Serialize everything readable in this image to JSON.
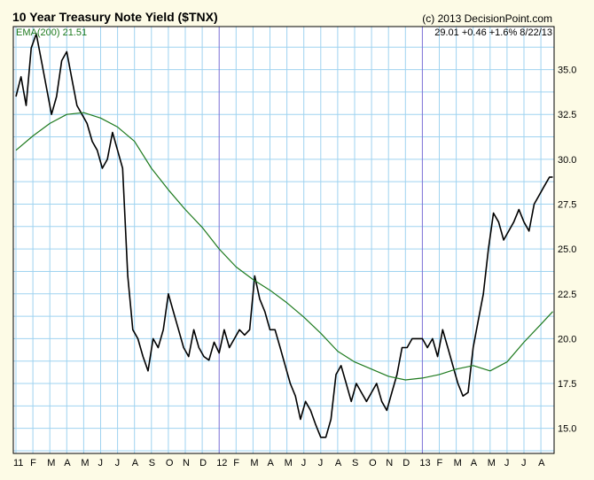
{
  "header": {
    "title": "10 Year Treasury Note Yield ($TNX)",
    "copyright": "(c) 2013 DecisionPoint.com",
    "ema_label": "EMA(200) 21.51",
    "last_quote": "29.01 +0.46 +1.6% 8/22/13"
  },
  "colors": {
    "background": "#fdfbe6",
    "plot_background": "#ffffff",
    "grid": "#9fd3f0",
    "year_line": "#7b6fd6",
    "price_line": "#000000",
    "ema_line": "#1e7a1e",
    "ema_label": "#1e7a1e"
  },
  "chart_data": {
    "type": "line",
    "title": "10 Year Treasury Note Yield ($TNX)",
    "x_unit": "month index from Jan 2011",
    "x_range": [
      0,
      31.8
    ],
    "ylim": [
      13.6,
      37.4
    ],
    "y_ticks": [
      "15.0",
      "17.5",
      "20.0",
      "22.5",
      "25.0",
      "27.5",
      "30.0",
      "32.5",
      "35.0"
    ],
    "x_ticks": [
      "11",
      "F",
      "M",
      "A",
      "M",
      "J",
      "J",
      "A",
      "S",
      "O",
      "N",
      "D",
      "12",
      "F",
      "M",
      "A",
      "M",
      "J",
      "J",
      "A",
      "S",
      "O",
      "N",
      "D",
      "13",
      "F",
      "M",
      "A",
      "M",
      "J",
      "J",
      "A"
    ],
    "year_boundaries": [
      12,
      24
    ],
    "grid": true,
    "series": [
      {
        "name": "$TNX",
        "x": [
          0,
          0.3,
          0.6,
          0.9,
          1.2,
          1.5,
          1.8,
          2.1,
          2.4,
          2.7,
          3.0,
          3.3,
          3.6,
          3.9,
          4.2,
          4.5,
          4.8,
          5.1,
          5.4,
          5.7,
          6.0,
          6.3,
          6.6,
          6.9,
          7.2,
          7.5,
          7.8,
          8.1,
          8.4,
          8.7,
          9.0,
          9.3,
          9.6,
          9.9,
          10.2,
          10.5,
          10.8,
          11.1,
          11.4,
          11.7,
          12.0,
          12.3,
          12.6,
          12.9,
          13.2,
          13.5,
          13.8,
          14.1,
          14.4,
          14.7,
          15.0,
          15.3,
          15.6,
          15.9,
          16.2,
          16.5,
          16.8,
          17.1,
          17.4,
          17.7,
          18.0,
          18.3,
          18.6,
          18.9,
          19.2,
          19.5,
          19.8,
          20.1,
          20.4,
          20.7,
          21.0,
          21.3,
          21.6,
          21.9,
          22.2,
          22.5,
          22.8,
          23.1,
          23.4,
          23.7,
          24.0,
          24.3,
          24.6,
          24.9,
          25.2,
          25.5,
          25.8,
          26.1,
          26.4,
          26.7,
          27.0,
          27.3,
          27.6,
          27.9,
          28.2,
          28.5,
          28.8,
          29.1,
          29.4,
          29.7,
          30.0,
          30.3,
          30.6,
          30.9,
          31.2,
          31.5,
          31.7
        ],
        "values": [
          33.5,
          34.6,
          33.0,
          36.2,
          37.0,
          35.5,
          34.0,
          32.5,
          33.5,
          35.5,
          36.0,
          34.5,
          33.0,
          32.5,
          32.0,
          31.0,
          30.5,
          29.5,
          30.0,
          31.5,
          30.5,
          29.5,
          23.5,
          20.5,
          20.0,
          19.0,
          18.2,
          20.0,
          19.5,
          20.5,
          22.5,
          21.5,
          20.5,
          19.5,
          19.0,
          20.5,
          19.5,
          19.0,
          18.8,
          19.8,
          19.2,
          20.5,
          19.5,
          20.0,
          20.5,
          20.2,
          20.5,
          23.5,
          22.2,
          21.5,
          20.5,
          20.5,
          19.5,
          18.5,
          17.5,
          16.8,
          15.5,
          16.5,
          16.0,
          15.2,
          14.5,
          14.5,
          15.5,
          18.0,
          18.5,
          17.5,
          16.5,
          17.5,
          17.0,
          16.5,
          17.0,
          17.5,
          16.5,
          16.0,
          17.0,
          18.0,
          19.5,
          19.5,
          20.0,
          20.0,
          20.0,
          19.5,
          20.0,
          19.0,
          20.5,
          19.5,
          18.5,
          17.5,
          16.8,
          17.0,
          19.5,
          21.0,
          22.5,
          25.0,
          27.0,
          26.5,
          25.5,
          26.0,
          26.5,
          27.2,
          26.5,
          26.0,
          27.5,
          28.0,
          28.5,
          29.0,
          29.01
        ]
      },
      {
        "name": "EMA(200)",
        "x": [
          0,
          1,
          2,
          3,
          4,
          5,
          6,
          7,
          8,
          9,
          10,
          11,
          12,
          13,
          14,
          15,
          16,
          17,
          18,
          19,
          20,
          21,
          22,
          23,
          24,
          25,
          26,
          27,
          28,
          29,
          30,
          31,
          31.7
        ],
        "values": [
          30.5,
          31.3,
          32.0,
          32.5,
          32.6,
          32.3,
          31.8,
          31.0,
          29.5,
          28.3,
          27.2,
          26.2,
          25.0,
          24.0,
          23.3,
          22.7,
          22.0,
          21.2,
          20.3,
          19.3,
          18.7,
          18.3,
          17.9,
          17.7,
          17.8,
          18.0,
          18.3,
          18.5,
          18.2,
          18.7,
          19.8,
          20.8,
          21.51
        ]
      }
    ]
  }
}
